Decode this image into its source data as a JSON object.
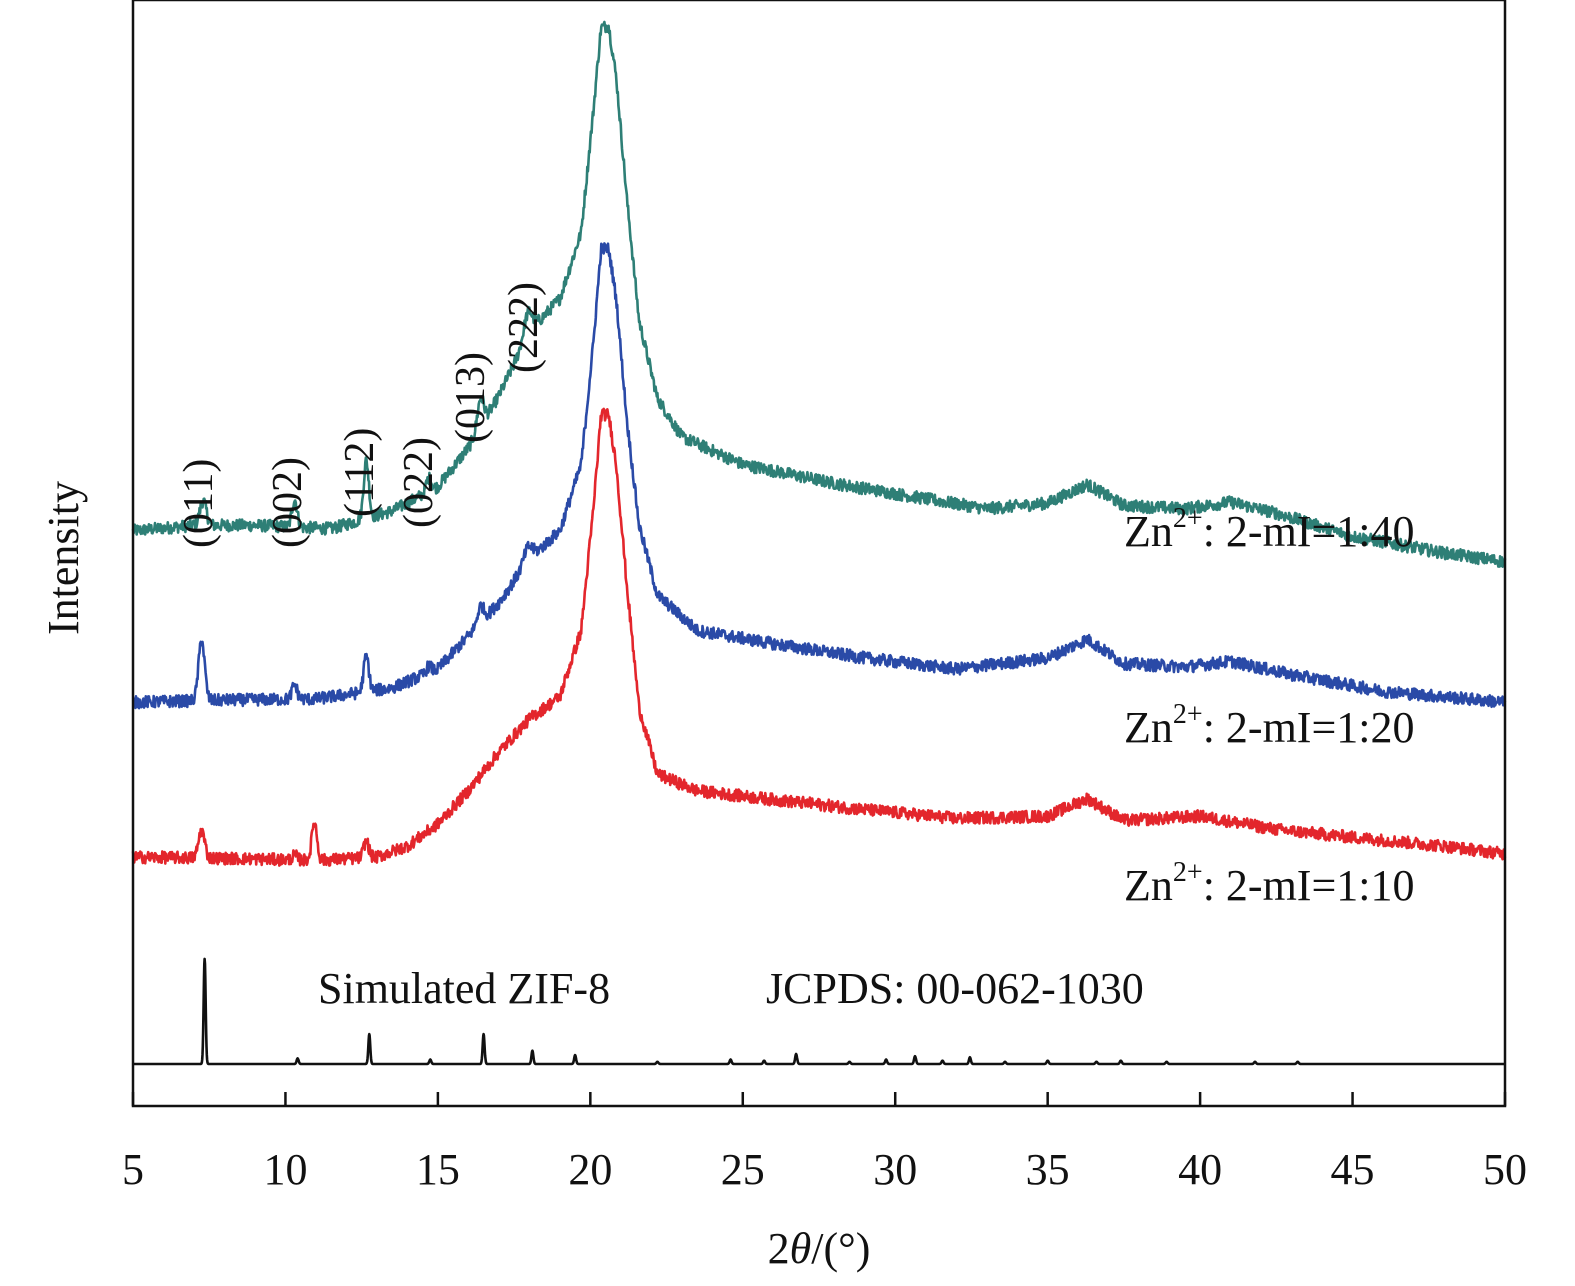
{
  "chart_data": {
    "type": "line",
    "title": "",
    "xlabel_prefix": "2",
    "xlabel_theta": "θ",
    "xlabel_suffix": "/(°)",
    "ylabel": "Intensity",
    "xlim": [
      5,
      50
    ],
    "ylim": [
      0,
      1
    ],
    "x_ticks": [
      5,
      10,
      15,
      20,
      25,
      30,
      35,
      40,
      45,
      50
    ],
    "peak_labels": [
      {
        "text": "(011)",
        "x": 7.3
      },
      {
        "text": "(002)",
        "x": 10.3
      },
      {
        "text": "(112)",
        "x": 12.7
      },
      {
        "text": "(022)",
        "x": 14.7
      },
      {
        "text": "(013)",
        "x": 16.4
      },
      {
        "text": "(222)",
        "x": 18.0
      }
    ],
    "reference": {
      "label_left": "Simulated ZIF-8",
      "label_right": "JCPDS: 00-062-1030",
      "color": "#111111",
      "baseline": 0.038,
      "peaks": [
        {
          "x": 7.35,
          "h": 0.095
        },
        {
          "x": 10.4,
          "h": 0.005
        },
        {
          "x": 12.75,
          "h": 0.027
        },
        {
          "x": 14.75,
          "h": 0.004
        },
        {
          "x": 16.5,
          "h": 0.027
        },
        {
          "x": 18.1,
          "h": 0.012
        },
        {
          "x": 19.5,
          "h": 0.008
        },
        {
          "x": 22.2,
          "h": 0.002
        },
        {
          "x": 24.6,
          "h": 0.004
        },
        {
          "x": 25.7,
          "h": 0.003
        },
        {
          "x": 26.75,
          "h": 0.009
        },
        {
          "x": 28.5,
          "h": 0.002
        },
        {
          "x": 29.7,
          "h": 0.004
        },
        {
          "x": 30.65,
          "h": 0.007
        },
        {
          "x": 31.55,
          "h": 0.003
        },
        {
          "x": 32.45,
          "h": 0.006
        },
        {
          "x": 33.6,
          "h": 0.002
        },
        {
          "x": 35.0,
          "h": 0.003
        },
        {
          "x": 36.6,
          "h": 0.002
        },
        {
          "x": 37.4,
          "h": 0.003
        },
        {
          "x": 38.9,
          "h": 0.002
        },
        {
          "x": 41.8,
          "h": 0.002
        },
        {
          "x": 43.2,
          "h": 0.002
        }
      ]
    },
    "series": [
      {
        "name": "1:40",
        "label_prefix": "Zn",
        "label_sup": "2+",
        "label_suffix": ": 2-mI=1:40",
        "color": "#2e7f76",
        "points": [
          [
            5,
            0.52
          ],
          [
            7.0,
            0.525
          ],
          [
            9.0,
            0.525
          ],
          [
            11.5,
            0.522
          ],
          [
            13.5,
            0.538
          ],
          [
            15.0,
            0.56
          ],
          [
            16.0,
            0.595
          ],
          [
            17.0,
            0.642
          ],
          [
            18.0,
            0.7
          ],
          [
            19.0,
            0.73
          ],
          [
            19.7,
            0.79
          ],
          [
            20.1,
            0.9
          ],
          [
            20.35,
            0.975
          ],
          [
            20.6,
            0.977
          ],
          [
            20.85,
            0.93
          ],
          [
            21.2,
            0.82
          ],
          [
            21.6,
            0.71
          ],
          [
            22.2,
            0.64
          ],
          [
            23.0,
            0.605
          ],
          [
            25.0,
            0.58
          ],
          [
            28.0,
            0.563
          ],
          [
            31.0,
            0.549
          ],
          [
            33.0,
            0.54
          ],
          [
            35.0,
            0.545
          ],
          [
            36.3,
            0.562
          ],
          [
            37.5,
            0.543
          ],
          [
            39.5,
            0.54
          ],
          [
            41.0,
            0.546
          ],
          [
            42.5,
            0.536
          ],
          [
            45.0,
            0.515
          ],
          [
            48.0,
            0.5
          ],
          [
            50.0,
            0.492
          ]
        ],
        "peaks": [
          {
            "x": 7.3,
            "h": 0.022,
            "w": 0.15
          },
          {
            "x": 10.3,
            "h": 0.025,
            "w": 0.12
          },
          {
            "x": 12.65,
            "h": 0.052,
            "w": 0.12
          },
          {
            "x": 14.7,
            "h": 0.012,
            "w": 0.12
          },
          {
            "x": 16.4,
            "h": 0.026,
            "w": 0.15
          },
          {
            "x": 17.95,
            "h": 0.02,
            "w": 0.2
          }
        ]
      },
      {
        "name": "1:20",
        "label_prefix": "Zn",
        "label_sup": "2+",
        "label_suffix": ": 2-mI=1:20",
        "color": "#2a4aa7",
        "points": [
          [
            5,
            0.365
          ],
          [
            8.0,
            0.367
          ],
          [
            11.0,
            0.368
          ],
          [
            13.5,
            0.378
          ],
          [
            15.0,
            0.395
          ],
          [
            16.0,
            0.425
          ],
          [
            17.0,
            0.455
          ],
          [
            18.0,
            0.495
          ],
          [
            19.0,
            0.52
          ],
          [
            19.7,
            0.58
          ],
          [
            20.1,
            0.69
          ],
          [
            20.35,
            0.775
          ],
          [
            20.6,
            0.775
          ],
          [
            20.85,
            0.73
          ],
          [
            21.2,
            0.62
          ],
          [
            21.6,
            0.525
          ],
          [
            22.2,
            0.462
          ],
          [
            23.5,
            0.43
          ],
          [
            26.0,
            0.418
          ],
          [
            29.0,
            0.405
          ],
          [
            32.0,
            0.395
          ],
          [
            35.0,
            0.405
          ],
          [
            36.3,
            0.422
          ],
          [
            37.5,
            0.4
          ],
          [
            39.5,
            0.397
          ],
          [
            41.0,
            0.402
          ],
          [
            43.0,
            0.39
          ],
          [
            46.0,
            0.375
          ],
          [
            50.0,
            0.365
          ]
        ],
        "peaks": [
          {
            "x": 7.25,
            "h": 0.055,
            "w": 0.14
          },
          {
            "x": 10.3,
            "h": 0.013,
            "w": 0.12
          },
          {
            "x": 12.65,
            "h": 0.032,
            "w": 0.12
          },
          {
            "x": 14.7,
            "h": 0.006,
            "w": 0.12
          },
          {
            "x": 16.4,
            "h": 0.015,
            "w": 0.15
          },
          {
            "x": 17.95,
            "h": 0.012,
            "w": 0.2
          }
        ]
      },
      {
        "name": "1:10",
        "label_prefix": "Zn",
        "label_sup": "2+",
        "label_suffix": ": 2-mI=1:10",
        "color": "#e3262c",
        "points": [
          [
            5,
            0.225
          ],
          [
            8.0,
            0.224
          ],
          [
            11.0,
            0.222
          ],
          [
            13.0,
            0.225
          ],
          [
            14.0,
            0.235
          ],
          [
            15.0,
            0.255
          ],
          [
            16.0,
            0.285
          ],
          [
            17.0,
            0.32
          ],
          [
            18.0,
            0.35
          ],
          [
            19.0,
            0.37
          ],
          [
            19.7,
            0.43
          ],
          [
            20.1,
            0.54
          ],
          [
            20.35,
            0.625
          ],
          [
            20.6,
            0.625
          ],
          [
            20.85,
            0.58
          ],
          [
            21.2,
            0.47
          ],
          [
            21.6,
            0.36
          ],
          [
            22.2,
            0.3
          ],
          [
            23.5,
            0.285
          ],
          [
            26.0,
            0.277
          ],
          [
            29.0,
            0.268
          ],
          [
            32.0,
            0.26
          ],
          [
            35.0,
            0.262
          ],
          [
            36.3,
            0.278
          ],
          [
            37.5,
            0.258
          ],
          [
            40.0,
            0.262
          ],
          [
            42.5,
            0.25
          ],
          [
            45.0,
            0.243
          ],
          [
            48.0,
            0.235
          ],
          [
            50.0,
            0.228
          ]
        ],
        "peaks": [
          {
            "x": 7.25,
            "h": 0.025,
            "w": 0.14
          },
          {
            "x": 10.3,
            "h": 0.004,
            "w": 0.12
          },
          {
            "x": 10.95,
            "h": 0.035,
            "w": 0.12
          },
          {
            "x": 12.65,
            "h": 0.015,
            "w": 0.12
          }
        ]
      }
    ]
  }
}
